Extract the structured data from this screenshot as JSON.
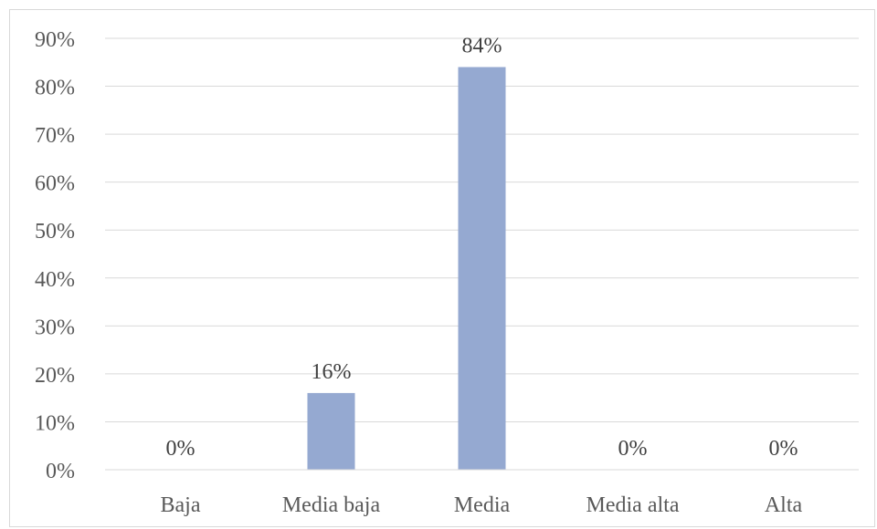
{
  "chart_data": {
    "type": "bar",
    "title": "",
    "xlabel": "",
    "ylabel": "",
    "categories": [
      "Baja",
      "Media baja",
      "Media",
      "Media alta",
      "Alta"
    ],
    "values": [
      0,
      16,
      84,
      0,
      0
    ],
    "data_labels": [
      "0%",
      "16%",
      "84%",
      "0%",
      "0%"
    ],
    "ylim": [
      0,
      90
    ],
    "yticks": [
      0,
      10,
      20,
      30,
      40,
      50,
      60,
      70,
      80,
      90
    ],
    "ytick_labels": [
      "0%",
      "10%",
      "20%",
      "30%",
      "40%",
      "50%",
      "60%",
      "70%",
      "80%",
      "90%"
    ],
    "grid": true,
    "legend": "none",
    "colors": {
      "bar": "#95a9d1",
      "grid": "#d9d9d9",
      "tick_text": "#595959",
      "label_text": "#404040"
    }
  }
}
